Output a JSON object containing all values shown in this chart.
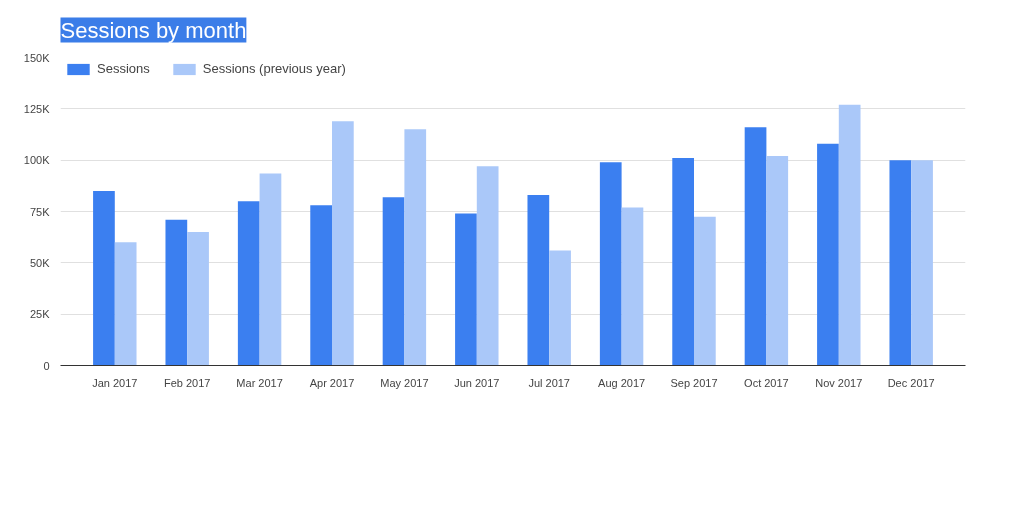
{
  "chart_data": {
    "type": "bar",
    "title": "Sessions by month",
    "categories": [
      "Jan 2017",
      "Feb 2017",
      "Mar 2017",
      "Apr 2017",
      "May 2017",
      "Jun 2017",
      "Jul 2017",
      "Aug 2017",
      "Sep 2017",
      "Oct 2017",
      "Nov 2017",
      "Dec 2017"
    ],
    "series": [
      {
        "name": "Sessions",
        "color": "#3b7ff0",
        "values": [
          85000,
          71000,
          80000,
          78000,
          82000,
          74000,
          83000,
          99000,
          101000,
          116000,
          108000,
          100000
        ]
      },
      {
        "name": "Sessions (previous year)",
        "color": "#aac8f9",
        "values": [
          60000,
          65000,
          93500,
          119000,
          115000,
          97000,
          56000,
          77000,
          72500,
          102000,
          127000,
          100000
        ]
      }
    ],
    "ylim": [
      0,
      150000
    ],
    "yticks": [
      {
        "value": 0,
        "label": "0"
      },
      {
        "value": 25000,
        "label": "25K"
      },
      {
        "value": 50000,
        "label": "50K"
      },
      {
        "value": 75000,
        "label": "75K"
      },
      {
        "value": 100000,
        "label": "100K"
      },
      {
        "value": 125000,
        "label": "125K"
      },
      {
        "value": 150000,
        "label": "150K"
      }
    ],
    "grid": "y",
    "legend": "top left"
  }
}
